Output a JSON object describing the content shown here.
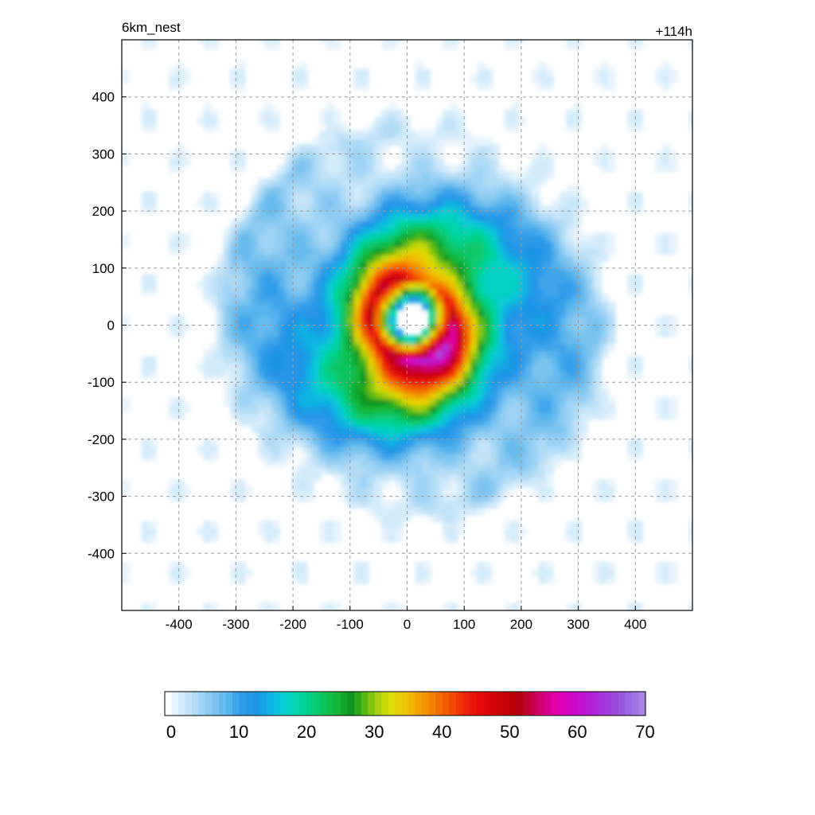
{
  "chart_data": {
    "type": "heatmap",
    "title_left": "6km_nest",
    "title_right": "+114h",
    "xlabel": "",
    "ylabel": "",
    "xlim": [
      -500,
      500
    ],
    "ylim": [
      -500,
      500
    ],
    "xticks": [
      -400,
      -300,
      -200,
      -100,
      0,
      100,
      200,
      300,
      400
    ],
    "yticks": [
      400,
      300,
      200,
      100,
      0,
      -100,
      -200,
      -300,
      -400
    ],
    "grid": true,
    "colorbar": {
      "min": 0,
      "max": 71,
      "step": 1,
      "tick_labels": [
        0,
        10,
        20,
        30,
        40,
        50,
        60,
        70
      ],
      "colors": [
        "#ffffff",
        "#e6f3fc",
        "#d4ebfa",
        "#c2e3f8",
        "#b0dbf6",
        "#9ed3f4",
        "#8ccbf2",
        "#7ac3f0",
        "#68bbee",
        "#56b3ec",
        "#3fa5ea",
        "#2f9ce9",
        "#2596e8",
        "#1f95e6",
        "#14a3e3",
        "#0cb2e1",
        "#09c0de",
        "#07ccd5",
        "#05d1c0",
        "#03d4aa",
        "#02d497",
        "#03cf84",
        "#07c970",
        "#0bc35c",
        "#0fbd48",
        "#13b636",
        "#11a52a",
        "#0e9420",
        "#2aa81a",
        "#55b814",
        "#80c50f",
        "#a8d00b",
        "#c8d808",
        "#dcdc05",
        "#e6d204",
        "#ecc403",
        "#f0b402",
        "#f2a302",
        "#f39202",
        "#f48002",
        "#f46d03",
        "#f35a04",
        "#f24705",
        "#f03406",
        "#ee2308",
        "#ec1609",
        "#e80d0a",
        "#e0070a",
        "#d6040a",
        "#cc0209",
        "#c30108",
        "#bb0008",
        "#b80010",
        "#bd0030",
        "#c70052",
        "#d00070",
        "#da008c",
        "#e000a4",
        "#dc00b6",
        "#d404c2",
        "#cb0aca",
        "#c212d0",
        "#b91cd4",
        "#b026d7",
        "#a832da",
        "#a23ddc",
        "#9c4ade",
        "#9958e0",
        "#9b67e2",
        "#a176e4",
        "#a984e6"
      ]
    },
    "storm": {
      "center": [
        10,
        10
      ],
      "eye_radius": 30,
      "max_wind": 55,
      "rmw": 70,
      "rainbands": 2,
      "outer_radius": 330
    }
  }
}
